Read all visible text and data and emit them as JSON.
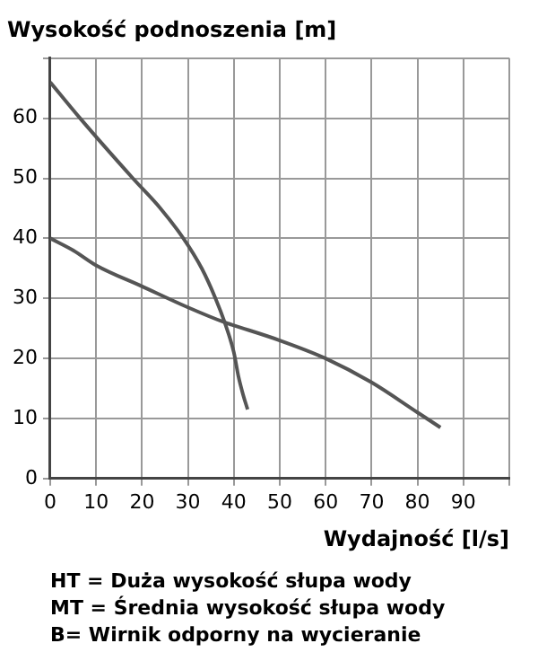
{
  "chart_data": {
    "type": "line",
    "ylabel": "Wysokość podnoszenia [m]",
    "xlabel": "Wydajność [l/s]",
    "xlim": [
      0,
      100
    ],
    "xticks": [
      0,
      10,
      20,
      30,
      40,
      50,
      60,
      70,
      80,
      90,
      {
        "value": 100,
        "label": null
      }
    ],
    "ylim": [
      0,
      70
    ],
    "yticks": [
      0,
      10,
      20,
      30,
      40,
      50,
      60,
      {
        "value": 70,
        "label": null
      }
    ],
    "grid": true,
    "legend": false,
    "marker": "none",
    "line_style": "solid",
    "series": [
      {
        "color": "#555555",
        "x": [
          0,
          6.5,
          18,
          24,
          29,
          33,
          36,
          38,
          40,
          41,
          42,
          43
        ],
        "values": [
          66,
          60,
          50,
          45,
          40,
          35,
          30,
          26,
          21,
          17,
          14,
          11.5
        ]
      },
      {
        "color": "#555555",
        "x": [
          0,
          5,
          10,
          20,
          30,
          38,
          40,
          50,
          60,
          70,
          80,
          85
        ],
        "values": [
          40,
          38,
          35.5,
          32,
          28.5,
          26,
          25.5,
          23,
          20,
          16,
          11,
          8.5
        ]
      }
    ],
    "annotations": [
      "HT = Duża wysokość słupa wody",
      "MT = Średnia wysokość słupa wody",
      "B= Wirnik odporny na wycieranie"
    ]
  }
}
